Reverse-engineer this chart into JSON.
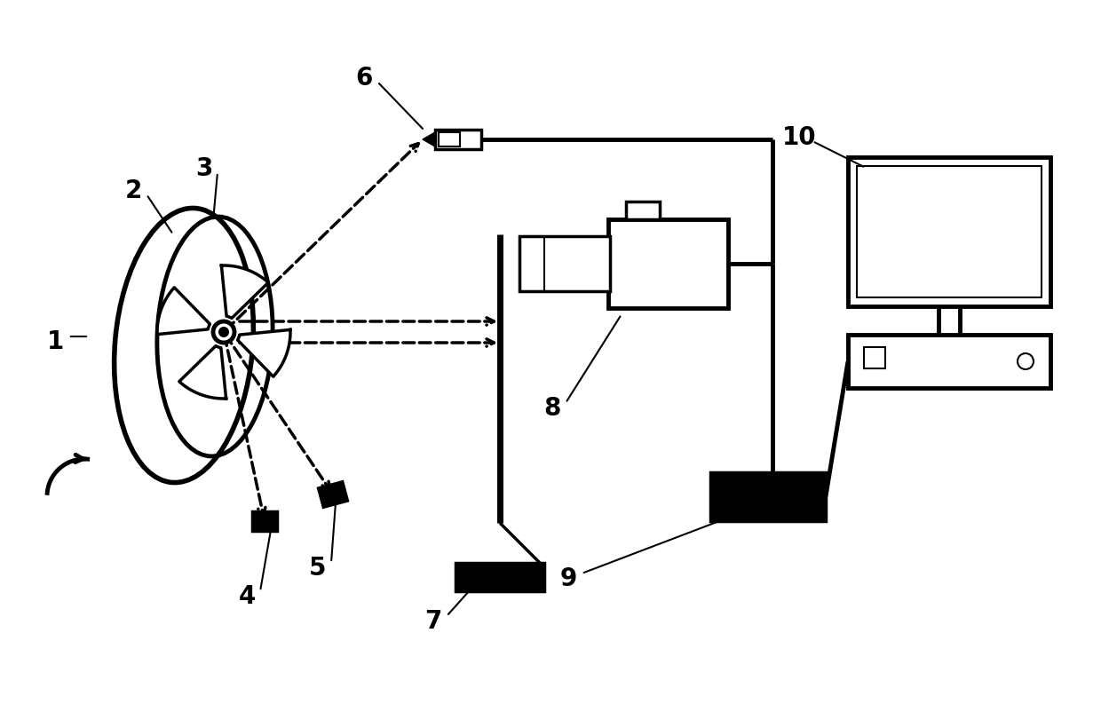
{
  "bg_color": "#ffffff",
  "line_color": "#000000",
  "lw": 2.5,
  "lw_thin": 1.5,
  "lw_thick": 3.5,
  "label_fontsize": 20
}
